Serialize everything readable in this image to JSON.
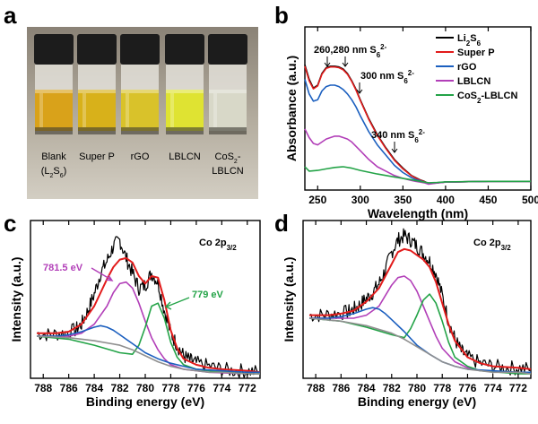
{
  "panels": {
    "a": {
      "letter": "a",
      "vials": [
        {
          "label_line1": "Blank",
          "label_line2": "(L2S6)",
          "liquid": "#d9a21a"
        },
        {
          "label_line1": "Super P",
          "label_line2": "",
          "liquid": "#d8b11a"
        },
        {
          "label_line1": "rGO",
          "label_line2": "",
          "liquid": "#d9c22a"
        },
        {
          "label_line1": "LBLCN",
          "label_line2": "",
          "liquid": "#dfe332"
        },
        {
          "label_line1": "CoS2-",
          "label_line2": "LBLCN",
          "liquid": "#d8d8c8"
        }
      ]
    },
    "b": {
      "letter": "b"
    },
    "c": {
      "letter": "c"
    },
    "d": {
      "letter": "d"
    }
  },
  "chart_data": [
    {
      "panel": "b",
      "type": "line",
      "xlabel": "Wavelength (nm)",
      "ylabel": "Absorbance (a.u.)",
      "xlim": [
        235,
        500
      ],
      "xticks": [
        250,
        300,
        350,
        400,
        450,
        500
      ],
      "legend_position": "top-right",
      "annotations": [
        "260,280 nm S6 2-",
        "300 nm S6 2-",
        "340 nm S6 2-"
      ],
      "series": [
        {
          "name": "Li2S6",
          "color": "#000000",
          "x": [
            235,
            240,
            245,
            250,
            255,
            260,
            265,
            270,
            275,
            280,
            285,
            290,
            295,
            300,
            310,
            320,
            330,
            340,
            350,
            360,
            365,
            370,
            375,
            380,
            390,
            400,
            450,
            500
          ],
          "y": [
            0.8,
            0.7,
            0.64,
            0.66,
            0.74,
            0.78,
            0.79,
            0.79,
            0.785,
            0.77,
            0.74,
            0.69,
            0.63,
            0.56,
            0.43,
            0.32,
            0.23,
            0.15,
            0.09,
            0.04,
            0.025,
            0.01,
            0.0,
            -0.015,
            -0.01,
            -0.005,
            0,
            0
          ]
        },
        {
          "name": "Super P",
          "color": "#e21b1b",
          "x": [
            235,
            240,
            245,
            250,
            255,
            260,
            265,
            270,
            275,
            280,
            285,
            290,
            295,
            300,
            310,
            320,
            330,
            340,
            350,
            360,
            365,
            370,
            375,
            380,
            390,
            400,
            450,
            500
          ],
          "y": [
            0.79,
            0.69,
            0.635,
            0.655,
            0.735,
            0.775,
            0.785,
            0.785,
            0.78,
            0.765,
            0.735,
            0.685,
            0.625,
            0.555,
            0.425,
            0.315,
            0.225,
            0.145,
            0.085,
            0.038,
            0.022,
            0.008,
            -0.002,
            -0.016,
            -0.01,
            -0.005,
            0,
            0
          ]
        },
        {
          "name": "rGO",
          "color": "#1b5fbf",
          "x": [
            235,
            240,
            245,
            250,
            255,
            260,
            265,
            270,
            275,
            280,
            285,
            290,
            295,
            300,
            310,
            320,
            330,
            340,
            350,
            360,
            365,
            370,
            375,
            380,
            390,
            400,
            450,
            500
          ],
          "y": [
            0.7,
            0.6,
            0.55,
            0.56,
            0.62,
            0.65,
            0.66,
            0.66,
            0.65,
            0.63,
            0.6,
            0.56,
            0.51,
            0.45,
            0.34,
            0.25,
            0.18,
            0.11,
            0.06,
            0.025,
            0.012,
            0.004,
            -0.005,
            -0.018,
            -0.01,
            -0.005,
            0,
            0
          ]
        },
        {
          "name": "LBLCN",
          "color": "#b23fb8",
          "x": [
            235,
            240,
            245,
            250,
            255,
            260,
            265,
            270,
            275,
            280,
            285,
            290,
            295,
            300,
            310,
            320,
            330,
            340,
            350,
            360,
            365,
            370,
            375,
            380,
            390,
            400,
            450,
            500
          ],
          "y": [
            0.36,
            0.3,
            0.26,
            0.25,
            0.27,
            0.29,
            0.3,
            0.31,
            0.31,
            0.3,
            0.29,
            0.27,
            0.24,
            0.21,
            0.15,
            0.1,
            0.07,
            0.04,
            0.02,
            0.005,
            0.0,
            -0.005,
            -0.01,
            -0.02,
            -0.012,
            -0.006,
            0,
            0
          ]
        },
        {
          "name": "CoS2-LBLCN",
          "color": "#23a347",
          "x": [
            235,
            240,
            250,
            260,
            270,
            280,
            290,
            300,
            320,
            340,
            360,
            370,
            380,
            390,
            400,
            450,
            500
          ],
          "y": [
            0.1,
            0.07,
            0.075,
            0.085,
            0.095,
            0.1,
            0.09,
            0.075,
            0.05,
            0.03,
            0.01,
            0.0,
            -0.01,
            -0.008,
            -0.004,
            0,
            0
          ]
        }
      ]
    },
    {
      "panel": "c",
      "type": "line",
      "title": "Co 2p3/2",
      "xlabel": "Binding energy (eV)",
      "ylabel": "Intensity (a.u.)",
      "xlim": [
        789,
        771
      ],
      "xticks": [
        788,
        786,
        784,
        782,
        780,
        778,
        776,
        774,
        772
      ],
      "annotations": [
        "781.5 eV",
        "779 eV"
      ],
      "series": [
        {
          "name": "",
          "color": "#000000",
          "role": "raw",
          "x": [
            788.5,
            787.5,
            786.5,
            785.5,
            785,
            784.5,
            784,
            783.5,
            783,
            782.5,
            782,
            781.5,
            781,
            780.5,
            780,
            779.5,
            779,
            778.5,
            778,
            777.5,
            777,
            776.5,
            776,
            775,
            774,
            773,
            772,
            771
          ],
          "y": [
            0.3,
            0.29,
            0.3,
            0.32,
            0.36,
            0.45,
            0.56,
            0.7,
            0.78,
            0.88,
            0.92,
            0.8,
            0.7,
            0.6,
            0.62,
            0.7,
            0.64,
            0.45,
            0.3,
            0.22,
            0.15,
            0.12,
            0.1,
            0.08,
            0.06,
            0.05,
            0.05,
            0.04
          ]
        },
        {
          "name": "",
          "color": "#e21b1b",
          "role": "fit",
          "x": [
            788.5,
            787,
            786,
            785,
            784,
            783,
            782.5,
            782,
            781.5,
            781,
            780.5,
            780,
            779.5,
            779,
            778.5,
            778,
            777.5,
            777,
            776,
            775,
            774,
            772,
            771
          ],
          "y": [
            0.3,
            0.3,
            0.31,
            0.36,
            0.48,
            0.66,
            0.74,
            0.79,
            0.8,
            0.77,
            0.68,
            0.63,
            0.68,
            0.67,
            0.52,
            0.32,
            0.2,
            0.13,
            0.09,
            0.07,
            0.06,
            0.05,
            0.04
          ]
        },
        {
          "name": "",
          "color": "#b23fb8",
          "role": "peak 781.5 eV",
          "x": [
            788.5,
            787,
            786,
            785,
            784,
            783,
            782.5,
            782,
            781.5,
            781,
            780.5,
            780,
            779.5,
            779,
            778.5,
            778,
            777,
            776,
            775,
            772,
            771
          ],
          "y": [
            0.28,
            0.28,
            0.28,
            0.3,
            0.36,
            0.48,
            0.57,
            0.63,
            0.64,
            0.6,
            0.5,
            0.38,
            0.27,
            0.19,
            0.13,
            0.09,
            0.06,
            0.05,
            0.04,
            0.03,
            0.03
          ]
        },
        {
          "name": "",
          "color": "#23a347",
          "role": "peak 779 eV",
          "x": [
            788.5,
            786,
            784,
            782,
            781,
            780.5,
            780,
            779.5,
            779,
            778.5,
            778,
            777.5,
            777,
            776,
            775,
            772,
            771
          ],
          "y": [
            0.28,
            0.26,
            0.22,
            0.17,
            0.16,
            0.22,
            0.34,
            0.48,
            0.5,
            0.4,
            0.24,
            0.14,
            0.09,
            0.06,
            0.05,
            0.03,
            0.03
          ]
        },
        {
          "name": "",
          "color": "#1b5fbf",
          "role": "satellite",
          "x": [
            788.5,
            787,
            786,
            785,
            784,
            783.5,
            783,
            782.5,
            782,
            781,
            780,
            779,
            778,
            777,
            776,
            774,
            772,
            771
          ],
          "y": [
            0.28,
            0.28,
            0.29,
            0.31,
            0.34,
            0.35,
            0.34,
            0.32,
            0.29,
            0.23,
            0.17,
            0.13,
            0.1,
            0.08,
            0.06,
            0.05,
            0.04,
            0.04
          ]
        },
        {
          "name": "",
          "color": "#8f8f8f",
          "role": "background",
          "x": [
            788.5,
            786,
            784,
            782,
            781,
            780,
            779,
            778,
            777,
            776,
            775,
            774,
            772,
            771
          ],
          "y": [
            0.28,
            0.27,
            0.25,
            0.22,
            0.19,
            0.15,
            0.11,
            0.08,
            0.06,
            0.05,
            0.04,
            0.04,
            0.03,
            0.03
          ]
        }
      ]
    },
    {
      "panel": "d",
      "type": "line",
      "title": "Co 2p3/2",
      "xlabel": "Binding energy (eV)",
      "ylabel": "Intensity (a.u.)",
      "xlim": [
        789,
        771
      ],
      "xticks": [
        788,
        786,
        784,
        782,
        780,
        778,
        776,
        774,
        772
      ],
      "series": [
        {
          "name": "",
          "color": "#000000",
          "role": "raw",
          "x": [
            788.5,
            787.5,
            786.5,
            785.5,
            785,
            784.5,
            784,
            783.5,
            783,
            782.5,
            782,
            781.5,
            781,
            780.5,
            780,
            779.5,
            779,
            778.5,
            778,
            777.5,
            777,
            776.5,
            776,
            775,
            774,
            773,
            772,
            771
          ],
          "y": [
            0.42,
            0.42,
            0.43,
            0.44,
            0.46,
            0.49,
            0.53,
            0.57,
            0.63,
            0.72,
            0.84,
            0.92,
            0.95,
            0.92,
            0.88,
            0.83,
            0.78,
            0.7,
            0.55,
            0.38,
            0.26,
            0.18,
            0.14,
            0.1,
            0.08,
            0.07,
            0.07,
            0.06
          ]
        },
        {
          "name": "",
          "color": "#e21b1b",
          "role": "fit",
          "x": [
            788.5,
            787,
            786,
            785,
            784,
            783,
            782,
            781.5,
            781,
            780.5,
            780,
            779.5,
            779,
            778.5,
            778,
            777.5,
            777,
            776,
            775,
            774,
            772,
            771
          ],
          "y": [
            0.42,
            0.42,
            0.43,
            0.45,
            0.51,
            0.6,
            0.76,
            0.84,
            0.86,
            0.85,
            0.82,
            0.79,
            0.74,
            0.64,
            0.5,
            0.36,
            0.25,
            0.14,
            0.1,
            0.08,
            0.07,
            0.06
          ]
        },
        {
          "name": "",
          "color": "#b23fb8",
          "role": "peak",
          "x": [
            788.5,
            786,
            785,
            784,
            783,
            782.5,
            782,
            781.5,
            781,
            780.5,
            780,
            779.5,
            779,
            778.5,
            778,
            777,
            776,
            775,
            772,
            771
          ],
          "y": [
            0.4,
            0.4,
            0.4,
            0.42,
            0.48,
            0.55,
            0.62,
            0.67,
            0.68,
            0.65,
            0.58,
            0.48,
            0.38,
            0.28,
            0.2,
            0.11,
            0.07,
            0.05,
            0.04,
            0.04
          ]
        },
        {
          "name": "",
          "color": "#23a347",
          "role": "peak",
          "x": [
            788.5,
            786,
            784,
            782,
            781,
            780.5,
            780,
            779.5,
            779,
            778.5,
            778,
            777.5,
            777,
            776,
            775,
            772,
            771
          ],
          "y": [
            0.4,
            0.38,
            0.34,
            0.29,
            0.27,
            0.33,
            0.42,
            0.52,
            0.56,
            0.5,
            0.38,
            0.24,
            0.14,
            0.08,
            0.05,
            0.03,
            0.03
          ]
        },
        {
          "name": "",
          "color": "#1b5fbf",
          "role": "satellite",
          "x": [
            788.5,
            787,
            786,
            785,
            784,
            783.5,
            783,
            782.5,
            782,
            781,
            780,
            779,
            778,
            777,
            776,
            774,
            772,
            771
          ],
          "y": [
            0.4,
            0.4,
            0.41,
            0.43,
            0.46,
            0.47,
            0.46,
            0.43,
            0.39,
            0.31,
            0.22,
            0.16,
            0.11,
            0.08,
            0.06,
            0.05,
            0.04,
            0.04
          ]
        },
        {
          "name": "",
          "color": "#8f8f8f",
          "role": "background",
          "x": [
            788.5,
            786,
            784,
            782,
            781,
            780,
            779,
            778,
            777,
            776,
            775,
            774,
            772,
            771
          ],
          "y": [
            0.4,
            0.38,
            0.35,
            0.3,
            0.26,
            0.21,
            0.16,
            0.11,
            0.08,
            0.06,
            0.05,
            0.04,
            0.04,
            0.03
          ]
        }
      ]
    }
  ]
}
